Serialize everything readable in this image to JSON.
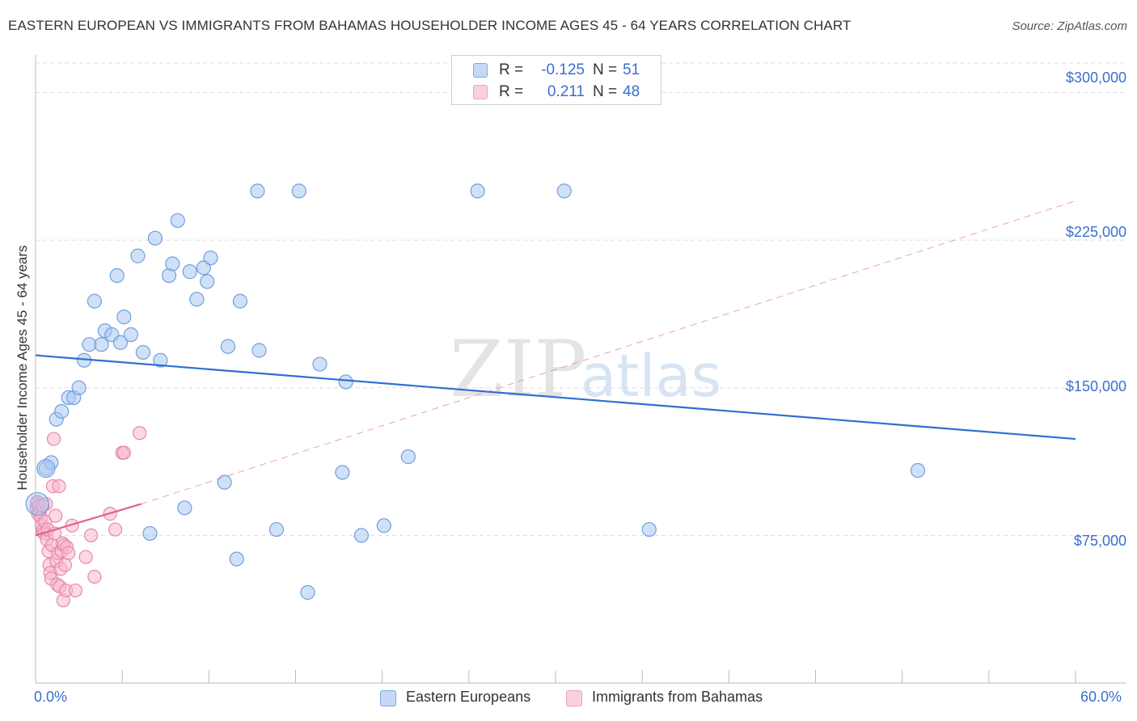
{
  "title": "EASTERN EUROPEAN VS IMMIGRANTS FROM BAHAMAS HOUSEHOLDER INCOME AGES 45 - 64 YEARS CORRELATION CHART",
  "source": "Source: ZipAtlas.com",
  "watermark": {
    "zip": "ZIP",
    "atlas": "atlas"
  },
  "legend": {
    "series1": {
      "r_label": "R = ",
      "r_value": "-0.125",
      "n_label": "N = ",
      "n_value": "51"
    },
    "series2": {
      "r_label": "R = ",
      "r_value": "0.211",
      "n_label": "N = ",
      "n_value": "48"
    }
  },
  "bottom_legend": {
    "series1": "Eastern Europeans",
    "series2": "Immigrants from Bahamas"
  },
  "colors": {
    "blue_fill": "#a9c8f0",
    "blue_stroke": "#6f9fe0",
    "blue_line": "#2f6fd0",
    "pink_fill": "#f7b8cc",
    "pink_stroke": "#e888a8",
    "pink_line": "#e0608a",
    "axis_text": "#3a6fd0",
    "grid": "#dddddd"
  },
  "chart_data": {
    "type": "scatter",
    "title": "EASTERN EUROPEAN VS IMMIGRANTS FROM BAHAMAS HOUSEHOLDER INCOME AGES 45 - 64 YEARS CORRELATION CHART",
    "xlabel": "",
    "ylabel": "Householder Income Ages 45 - 64 years",
    "xlim": [
      0,
      60
    ],
    "ylim": [
      0,
      315000
    ],
    "x_tick_labels": [
      "0.0%",
      "60.0%"
    ],
    "y_ticks": [
      {
        "value": 75000,
        "label": "$75,000"
      },
      {
        "value": 150000,
        "label": "$150,000"
      },
      {
        "value": 225000,
        "label": "$225,000"
      },
      {
        "value": 300000,
        "label": "$300,000"
      }
    ],
    "grid": true,
    "series": [
      {
        "name": "Eastern Europeans",
        "color": "blue",
        "R": -0.125,
        "N": 51,
        "trend": {
          "x": [
            0,
            60
          ],
          "y": [
            166500,
            124000
          ],
          "style": "solid"
        },
        "points": [
          [
            0.1,
            91000
          ],
          [
            0.6,
            109000
          ],
          [
            0.9,
            112000
          ],
          [
            1.2,
            134000
          ],
          [
            1.5,
            138000
          ],
          [
            1.9,
            145000
          ],
          [
            2.2,
            145000
          ],
          [
            2.5,
            150000
          ],
          [
            2.8,
            164000
          ],
          [
            3.1,
            172000
          ],
          [
            3.4,
            194000
          ],
          [
            3.8,
            172000
          ],
          [
            4.0,
            179000
          ],
          [
            4.4,
            177000
          ],
          [
            4.9,
            173000
          ],
          [
            5.1,
            186000
          ],
          [
            5.5,
            177000
          ],
          [
            4.7,
            207000
          ],
          [
            5.9,
            217000
          ],
          [
            6.2,
            168000
          ],
          [
            6.6,
            76000
          ],
          [
            6.9,
            226000
          ],
          [
            7.2,
            164000
          ],
          [
            7.7,
            207000
          ],
          [
            7.9,
            213000
          ],
          [
            8.2,
            235000
          ],
          [
            8.9,
            209000
          ],
          [
            9.3,
            195000
          ],
          [
            9.7,
            211000
          ],
          [
            9.9,
            204000
          ],
          [
            10.1,
            216000
          ],
          [
            10.9,
            102000
          ],
          [
            11.1,
            171000
          ],
          [
            11.6,
            63000
          ],
          [
            11.8,
            194000
          ],
          [
            12.8,
            250000
          ],
          [
            12.9,
            169000
          ],
          [
            13.9,
            78000
          ],
          [
            15.2,
            250000
          ],
          [
            15.7,
            46000
          ],
          [
            16.4,
            162000
          ],
          [
            17.7,
            107000
          ],
          [
            17.9,
            153000
          ],
          [
            18.8,
            75000
          ],
          [
            20.1,
            80000
          ],
          [
            21.5,
            115000
          ],
          [
            25.5,
            250000
          ],
          [
            30.5,
            250000
          ],
          [
            35.4,
            78000
          ],
          [
            50.9,
            108000
          ],
          [
            8.6,
            89000
          ]
        ]
      },
      {
        "name": "Immigrants from Bahamas",
        "color": "pink",
        "R": 0.211,
        "N": 48,
        "trend": {
          "x": [
            0,
            6.1
          ],
          "y": [
            75000,
            91000
          ],
          "style": "solid",
          "extended_x": [
            6.1,
            60
          ],
          "extended_y": [
            91000,
            245000
          ],
          "extended_style": "dashed"
        },
        "points": [
          [
            0.05,
            89000
          ],
          [
            0.1,
            92000
          ],
          [
            0.15,
            86000
          ],
          [
            0.2,
            90000
          ],
          [
            0.25,
            87000
          ],
          [
            0.3,
            84000
          ],
          [
            0.35,
            80000
          ],
          [
            0.4,
            77000
          ],
          [
            0.45,
            78000
          ],
          [
            0.5,
            76000
          ],
          [
            0.55,
            82000
          ],
          [
            0.6,
            91000
          ],
          [
            0.65,
            73000
          ],
          [
            0.7,
            78000
          ],
          [
            0.75,
            67000
          ],
          [
            0.8,
            60000
          ],
          [
            0.85,
            56000
          ],
          [
            0.9,
            53000
          ],
          [
            0.95,
            70000
          ],
          [
            1.0,
            100000
          ],
          [
            1.05,
            124000
          ],
          [
            1.1,
            76000
          ],
          [
            1.15,
            85000
          ],
          [
            1.2,
            62000
          ],
          [
            1.25,
            50000
          ],
          [
            1.3,
            66000
          ],
          [
            1.35,
            100000
          ],
          [
            1.4,
            49000
          ],
          [
            1.45,
            58000
          ],
          [
            1.5,
            67000
          ],
          [
            1.55,
            71000
          ],
          [
            1.6,
            42000
          ],
          [
            1.65,
            70000
          ],
          [
            1.7,
            60000
          ],
          [
            1.75,
            47000
          ],
          [
            1.8,
            69000
          ],
          [
            1.9,
            66000
          ],
          [
            2.1,
            80000
          ],
          [
            2.3,
            47000
          ],
          [
            2.9,
            64000
          ],
          [
            3.2,
            75000
          ],
          [
            3.4,
            54000
          ],
          [
            4.3,
            86000
          ],
          [
            4.6,
            78000
          ],
          [
            5.0,
            117000
          ],
          [
            5.1,
            117000
          ],
          [
            6.0,
            127000
          ],
          [
            0.4,
            90000
          ]
        ]
      }
    ]
  }
}
